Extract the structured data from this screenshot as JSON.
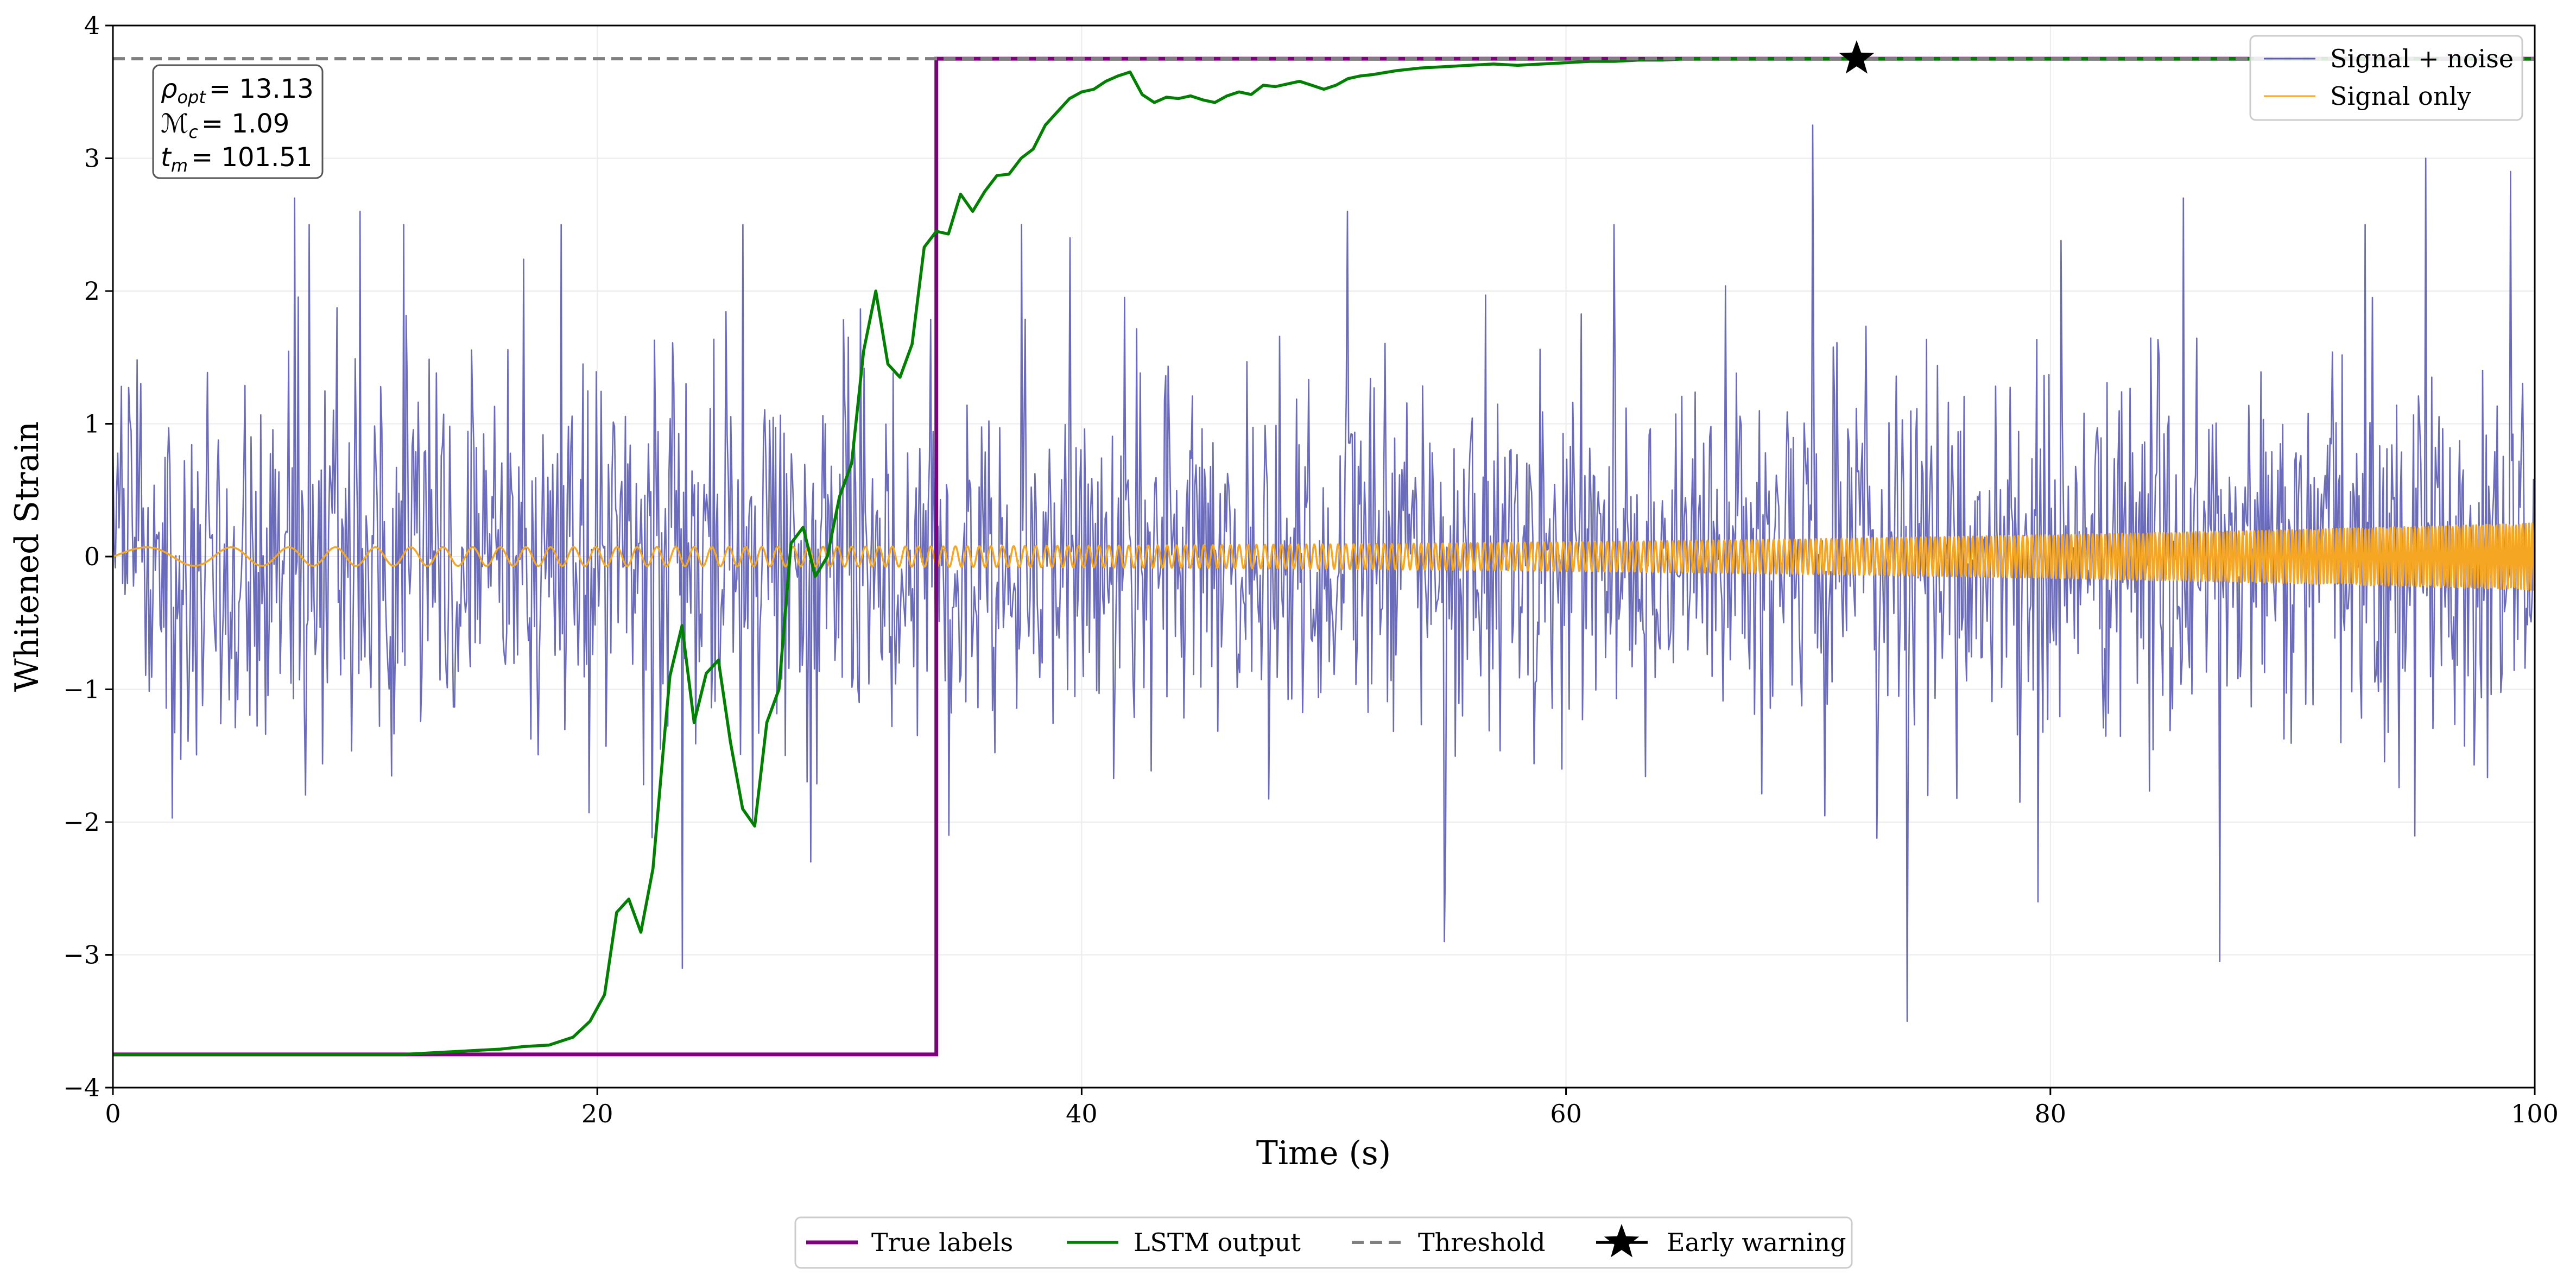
{
  "chart_data": {
    "type": "line",
    "xlabel": "Time (s)",
    "ylabel": "Whitened Strain",
    "xlim": [
      0,
      100
    ],
    "ylim": [
      -4,
      4
    ],
    "x_ticks": [
      0,
      20,
      40,
      60,
      80,
      100
    ],
    "y_ticks": [
      -4,
      -3,
      -2,
      -1,
      0,
      1,
      2,
      3,
      4
    ],
    "x_tick_labels": [
      "0",
      "20",
      "40",
      "60",
      "80",
      "100"
    ],
    "y_tick_labels": [
      "−4",
      "−3",
      "−2",
      "−1",
      "0",
      "1",
      "2",
      "3",
      "4"
    ],
    "grid": true,
    "threshold": 3.75,
    "true_labels": {
      "low": -3.75,
      "high": 3.75,
      "step_time": 34.0
    },
    "lstm_output": {
      "x": [
        0,
        12,
        13,
        15,
        16,
        17,
        18,
        19,
        19.7,
        20.3,
        20.8,
        21.3,
        21.8,
        22.3,
        22.8,
        23,
        23.5,
        24,
        24.5,
        25,
        25.5,
        26,
        26.5,
        27,
        27.5,
        28,
        28.5,
        29,
        29.5,
        30,
        30.5,
        31,
        31.5,
        32,
        32.5,
        33,
        33.5,
        34,
        34.5,
        35,
        35.5,
        36,
        36.5,
        37,
        37.5,
        38,
        38.5,
        39,
        39.5,
        40,
        40.5,
        41,
        41.5,
        42,
        42.5,
        43,
        43.5,
        44,
        44.5,
        45,
        45.5,
        46,
        46.5,
        47,
        47.5,
        48,
        48.5,
        49,
        49.5,
        50,
        50.5,
        51,
        51.5,
        52,
        53,
        54,
        55,
        56,
        57,
        58,
        59,
        60,
        61,
        62,
        63,
        64,
        65,
        66,
        67,
        68,
        70,
        72,
        75,
        80,
        85,
        90,
        95,
        100
      ],
      "y": [
        -3.75,
        -3.75,
        -3.74,
        -3.72,
        -3.71,
        -3.69,
        -3.68,
        -3.62,
        -3.5,
        -3.3,
        -2.68,
        -2.58,
        -2.83,
        -2.35,
        -1.3,
        -0.9,
        -0.52,
        -1.25,
        -0.88,
        -0.78,
        -1.4,
        -1.9,
        -2.03,
        -1.25,
        -1.0,
        0.1,
        0.22,
        -0.15,
        0.0,
        0.45,
        0.7,
        1.55,
        2.0,
        1.45,
        1.35,
        1.6,
        2.33,
        2.45,
        2.43,
        2.73,
        2.6,
        2.75,
        2.87,
        2.88,
        3.0,
        3.07,
        3.25,
        3.35,
        3.45,
        3.5,
        3.52,
        3.58,
        3.62,
        3.65,
        3.48,
        3.42,
        3.46,
        3.45,
        3.47,
        3.44,
        3.42,
        3.47,
        3.5,
        3.48,
        3.55,
        3.54,
        3.56,
        3.58,
        3.55,
        3.52,
        3.55,
        3.6,
        3.62,
        3.63,
        3.66,
        3.68,
        3.69,
        3.7,
        3.71,
        3.7,
        3.71,
        3.72,
        3.73,
        3.73,
        3.74,
        3.74,
        3.75,
        3.75,
        3.75,
        3.75,
        3.75,
        3.75,
        3.75,
        3.75,
        3.75,
        3.75,
        3.75,
        3.75
      ]
    },
    "signal_noise": {
      "sigma": 0.7,
      "n_samples": 2000,
      "spikes": [
        [
          7.5,
          2.7
        ],
        [
          8.1,
          2.5
        ],
        [
          10.2,
          2.6
        ],
        [
          12,
          2.5
        ],
        [
          18.5,
          2.5
        ],
        [
          23.5,
          -3.1
        ],
        [
          26,
          2.5
        ],
        [
          28.8,
          -2.3
        ],
        [
          37.5,
          2.5
        ],
        [
          39.5,
          2.4
        ],
        [
          51,
          2.6
        ],
        [
          55,
          -2.9
        ],
        [
          62,
          2.5
        ],
        [
          70.2,
          3.25
        ],
        [
          74.1,
          -3.5
        ],
        [
          79.5,
          -2.6
        ],
        [
          85.5,
          2.7
        ],
        [
          87,
          -3.05
        ],
        [
          93,
          2.5
        ],
        [
          95.5,
          3.0
        ],
        [
          99,
          2.9
        ]
      ]
    },
    "signal_only": {
      "base_amplitude": 0.07,
      "end_amplitude": 0.25,
      "freq_start": 0.15,
      "freq_end": 2.2
    },
    "early_warning": {
      "x": 72.0,
      "y": 3.75
    },
    "series_names": {
      "signal_noise": "Signal + noise",
      "signal_only": "Signal only",
      "true_labels": "True labels",
      "lstm_output": "LSTM output",
      "threshold": "Threshold",
      "early_warning": "Early warning"
    },
    "colors": {
      "signal_noise": "#5b5bb5",
      "signal_only": "#f5a623",
      "true_labels": "#800080",
      "lstm_output": "#008000",
      "threshold": "#808080",
      "early_warning": "#000000",
      "grid": "#ebebeb"
    },
    "legend_upper_position": "top-right",
    "legend_bottom_position": "bottom-center",
    "annotations": {
      "rho_name": "ρ",
      "rho_sub": "opt",
      "rho_val": "= 13.13",
      "mc_name": "ℳ",
      "mc_sub": "c",
      "mc_val": "= 1.09",
      "tm_name": "t",
      "tm_sub": "m",
      "tm_val": "= 101.51"
    }
  }
}
